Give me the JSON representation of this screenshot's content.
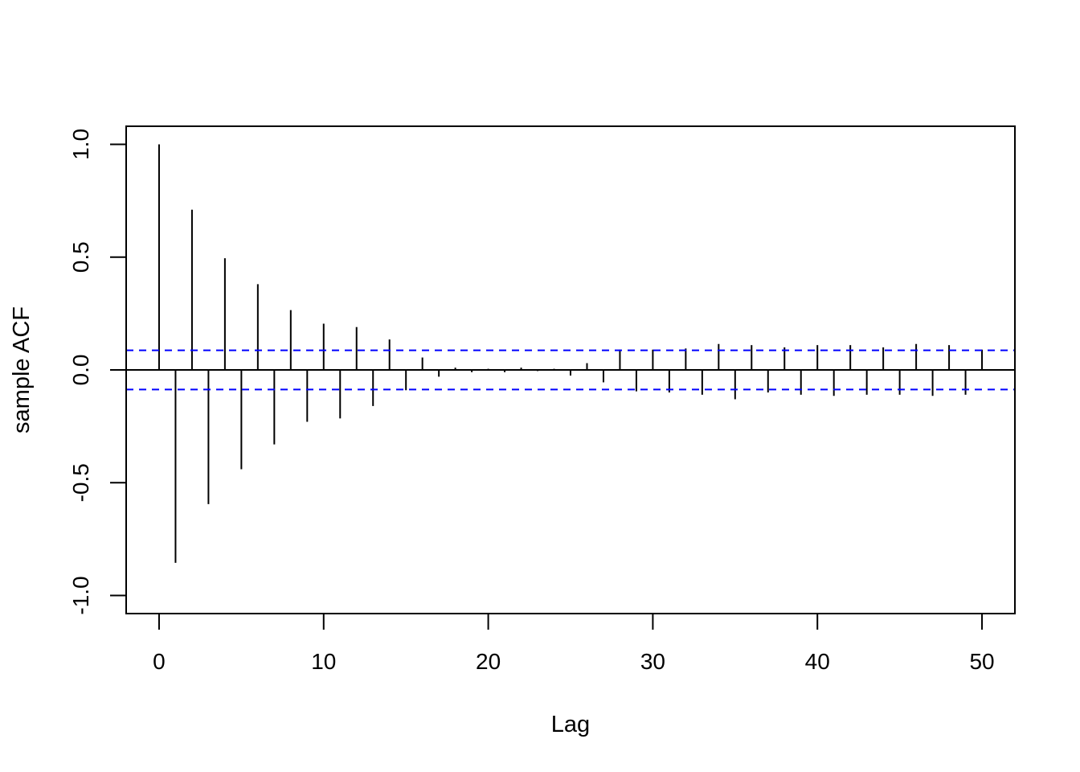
{
  "chart_data": {
    "type": "bar",
    "xlabel": "Lag",
    "ylabel": "sample ACF",
    "xlim": [
      -2,
      52
    ],
    "ylim": [
      -1.08,
      1.08
    ],
    "x_ticks": [
      0,
      10,
      20,
      30,
      40,
      50
    ],
    "y_ticks": [
      -1.0,
      -0.5,
      0.0,
      0.5,
      1.0
    ],
    "x_tick_labels": [
      "0",
      "10",
      "20",
      "30",
      "40",
      "50"
    ],
    "y_tick_labels": [
      "-1.0",
      "-0.5",
      "0.0",
      "0.5",
      "1.0"
    ],
    "confidence_band": 0.087,
    "grid": false,
    "colors": {
      "bars": "#000000",
      "band": "#0000ff",
      "axes": "#000000"
    },
    "lags": [
      0,
      1,
      2,
      3,
      4,
      5,
      6,
      7,
      8,
      9,
      10,
      11,
      12,
      13,
      14,
      15,
      16,
      17,
      18,
      19,
      20,
      21,
      22,
      23,
      24,
      25,
      26,
      27,
      28,
      29,
      30,
      31,
      32,
      33,
      34,
      35,
      36,
      37,
      38,
      39,
      40,
      41,
      42,
      43,
      44,
      45,
      46,
      47,
      48,
      49,
      50
    ],
    "values": [
      1.0,
      -0.855,
      0.71,
      -0.595,
      0.495,
      -0.44,
      0.38,
      -0.33,
      0.265,
      -0.23,
      0.205,
      -0.215,
      0.19,
      -0.16,
      0.135,
      -0.09,
      0.055,
      -0.03,
      0.01,
      -0.01,
      0.005,
      -0.01,
      0.01,
      -0.005,
      0.005,
      -0.025,
      0.03,
      -0.055,
      0.09,
      -0.095,
      0.09,
      -0.1,
      0.095,
      -0.11,
      0.115,
      -0.13,
      0.11,
      -0.1,
      0.1,
      -0.11,
      0.11,
      -0.115,
      0.11,
      -0.11,
      0.1,
      -0.11,
      0.115,
      -0.115,
      0.11,
      -0.11,
      0.09
    ]
  }
}
